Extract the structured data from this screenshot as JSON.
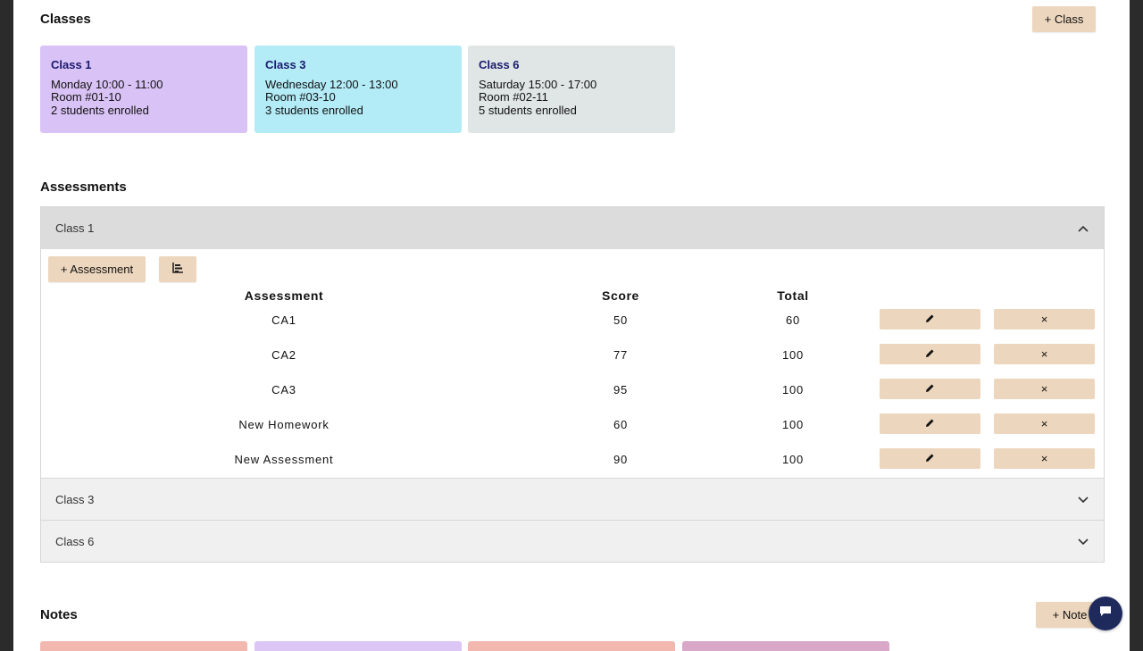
{
  "classes": {
    "title": "Classes",
    "add_label": "+ Class",
    "cards": [
      {
        "name": "Class 1",
        "schedule": "Monday 10:00 - 11:00",
        "room": "Room #01-10",
        "enrolled": "2 students enrolled",
        "color": "#d9c2f5"
      },
      {
        "name": "Class 3",
        "schedule": "Wednesday 12:00 - 13:00",
        "room": "Room #03-10",
        "enrolled": "3 students enrolled",
        "color": "#b3ebf7"
      },
      {
        "name": "Class 6",
        "schedule": "Saturday 15:00 - 17:00",
        "room": "Room #02-11",
        "enrolled": "5 students enrolled",
        "color": "#dfe6e5"
      }
    ]
  },
  "assessments": {
    "title": "Assessments",
    "panels": [
      {
        "label": "Class 1",
        "state": "expanded"
      },
      {
        "label": "Class 3",
        "state": "collapsed"
      },
      {
        "label": "Class 6",
        "state": "collapsed"
      }
    ],
    "add_label": "+ Assessment",
    "chart_icon": "bar-chart-icon",
    "columns": [
      "Assessment",
      "Score",
      "Total"
    ],
    "rows": [
      {
        "name": "CA1",
        "score": "50",
        "total": "60"
      },
      {
        "name": "CA2",
        "score": "77",
        "total": "100"
      },
      {
        "name": "CA3",
        "score": "95",
        "total": "100"
      },
      {
        "name": "New Homework",
        "score": "60",
        "total": "100"
      },
      {
        "name": "New Assessment",
        "score": "90",
        "total": "100"
      }
    ],
    "edit_icon": "pencil-icon",
    "delete_glyph": "×"
  },
  "notes": {
    "title": "Notes",
    "add_label": "+ Note",
    "card_colors": [
      "#f2b8b0",
      "#dcc6f5",
      "#f2b8b0",
      "#d9a7c7"
    ]
  },
  "chat_icon": "chat-bubble-icon"
}
